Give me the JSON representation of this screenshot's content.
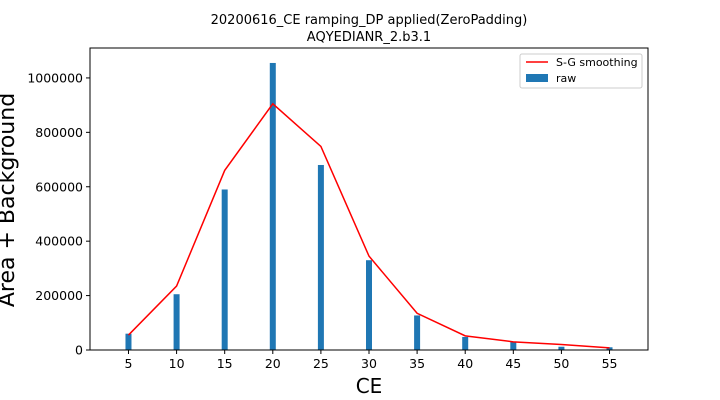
{
  "chart_data": {
    "type": "bar",
    "title_line1": "20200616_CE ramping_DP applied(ZeroPadding)",
    "title_line2": "AQYEDIANR_2.b3.1",
    "xlabel": "CE",
    "ylabel": "Area + Background",
    "xlim": [
      1,
      59
    ],
    "ylim": [
      0,
      1110000
    ],
    "x_ticks": [
      5,
      10,
      15,
      20,
      25,
      30,
      35,
      40,
      45,
      50,
      55
    ],
    "y_ticks": [
      0,
      200000,
      400000,
      600000,
      800000,
      1000000
    ],
    "y_tick_labels": [
      "0",
      "200000",
      "400000",
      "600000",
      "800000",
      "1000000"
    ],
    "legend_position": "top-right",
    "grid": false,
    "series": [
      {
        "name": "raw",
        "kind": "bar",
        "color": "#1f77b4",
        "x": [
          5,
          10,
          15,
          20,
          25,
          30,
          35,
          40,
          45,
          50,
          55
        ],
        "values": [
          60000,
          205000,
          590000,
          1055000,
          680000,
          330000,
          127000,
          48000,
          30000,
          12000,
          10000
        ]
      },
      {
        "name": "S-G smoothing",
        "kind": "line",
        "color": "#ff0000",
        "x": [
          5,
          10,
          15,
          20,
          25,
          30,
          35,
          40,
          45,
          50,
          55
        ],
        "values": [
          55000,
          235000,
          660000,
          905000,
          748000,
          345000,
          135000,
          52000,
          30000,
          20000,
          8000
        ]
      }
    ]
  }
}
